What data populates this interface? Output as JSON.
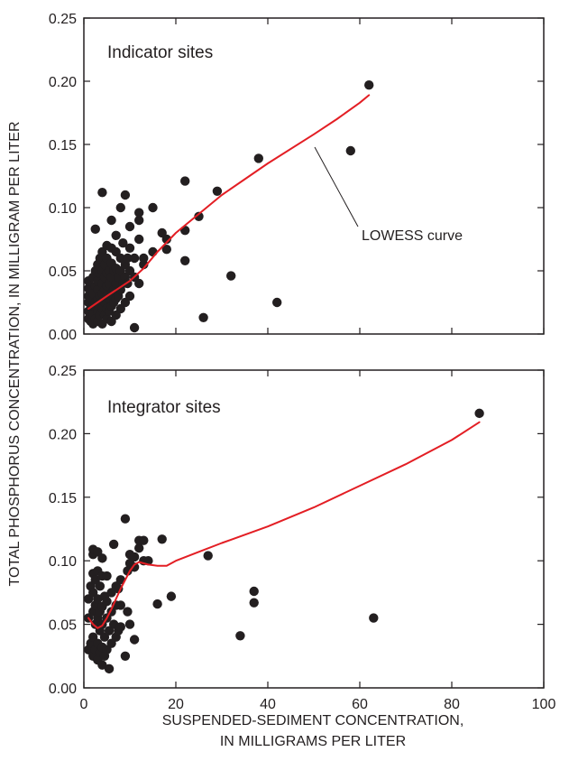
{
  "ylabel": "TOTAL PHOSPHORUS CONCENTRATION, IN MILLIGRAM PER LITER",
  "xlabel_line1": "SUSPENDED-SEDIMENT CONCENTRATION,",
  "xlabel_line2": "IN MILLIGRAMS PER LITER",
  "colors": {
    "points": "#231f20",
    "curve": "#e31e24",
    "axis": "#231f20"
  },
  "chart_data": [
    {
      "type": "scatter",
      "title": "Indicator sites",
      "annotation": "LOWESS curve",
      "xlim": [
        0,
        100
      ],
      "ylim": [
        0,
        0.25
      ],
      "xticks": [
        "0",
        "20",
        "40",
        "60",
        "80",
        "100"
      ],
      "yticks": [
        "0.00",
        "0.05",
        "0.10",
        "0.15",
        "0.20",
        "0.25"
      ],
      "grid": false,
      "points": [
        [
          1,
          0.012
        ],
        [
          1,
          0.018
        ],
        [
          1,
          0.025
        ],
        [
          1,
          0.03
        ],
        [
          1,
          0.036
        ],
        [
          1,
          0.042
        ],
        [
          1.5,
          0.01
        ],
        [
          1.5,
          0.02
        ],
        [
          1.5,
          0.028
        ],
        [
          2,
          0.008
        ],
        [
          2,
          0.015
        ],
        [
          2,
          0.022
        ],
        [
          2,
          0.032
        ],
        [
          2,
          0.045
        ],
        [
          2.5,
          0.012
        ],
        [
          2.5,
          0.025
        ],
        [
          2.5,
          0.038
        ],
        [
          2.5,
          0.05
        ],
        [
          2.5,
          0.083
        ],
        [
          3,
          0.01
        ],
        [
          3,
          0.018
        ],
        [
          3,
          0.027
        ],
        [
          3,
          0.035
        ],
        [
          3,
          0.042
        ],
        [
          3,
          0.055
        ],
        [
          3.5,
          0.015
        ],
        [
          3.5,
          0.022
        ],
        [
          3.5,
          0.03
        ],
        [
          3.5,
          0.048
        ],
        [
          3.5,
          0.06
        ],
        [
          4,
          0.008
        ],
        [
          4,
          0.02
        ],
        [
          4,
          0.032
        ],
        [
          4,
          0.04
        ],
        [
          4,
          0.05
        ],
        [
          4,
          0.065
        ],
        [
          4,
          0.112
        ],
        [
          4.5,
          0.015
        ],
        [
          4.5,
          0.025
        ],
        [
          4.5,
          0.035
        ],
        [
          4.5,
          0.045
        ],
        [
          4.5,
          0.055
        ],
        [
          5,
          0.012
        ],
        [
          5,
          0.02
        ],
        [
          5,
          0.03
        ],
        [
          5,
          0.038
        ],
        [
          5,
          0.048
        ],
        [
          5,
          0.06
        ],
        [
          5,
          0.07
        ],
        [
          5.5,
          0.018
        ],
        [
          5.5,
          0.028
        ],
        [
          5.5,
          0.04
        ],
        [
          5.5,
          0.05
        ],
        [
          6,
          0.01
        ],
        [
          6,
          0.022
        ],
        [
          6,
          0.032
        ],
        [
          6,
          0.045
        ],
        [
          6,
          0.056
        ],
        [
          6,
          0.068
        ],
        [
          6,
          0.09
        ],
        [
          6.5,
          0.025
        ],
        [
          6.5,
          0.035
        ],
        [
          6.5,
          0.05
        ],
        [
          7,
          0.015
        ],
        [
          7,
          0.028
        ],
        [
          7,
          0.04
        ],
        [
          7,
          0.052
        ],
        [
          7,
          0.065
        ],
        [
          7,
          0.078
        ],
        [
          7.5,
          0.03
        ],
        [
          7.5,
          0.045
        ],
        [
          8,
          0.02
        ],
        [
          8,
          0.035
        ],
        [
          8,
          0.05
        ],
        [
          8,
          0.06
        ],
        [
          8,
          0.1
        ],
        [
          8.5,
          0.04
        ],
        [
          8.5,
          0.072
        ],
        [
          9,
          0.025
        ],
        [
          9,
          0.045
        ],
        [
          9,
          0.055
        ],
        [
          9,
          0.11
        ],
        [
          9.5,
          0.04
        ],
        [
          9.5,
          0.06
        ],
        [
          10,
          0.03
        ],
        [
          10,
          0.05
        ],
        [
          10,
          0.068
        ],
        [
          10,
          0.085
        ],
        [
          11,
          0.005
        ],
        [
          11,
          0.045
        ],
        [
          11,
          0.06
        ],
        [
          12,
          0.04
        ],
        [
          12,
          0.075
        ],
        [
          12,
          0.09
        ],
        [
          12,
          0.096
        ],
        [
          13,
          0.055
        ],
        [
          13,
          0.06
        ],
        [
          15,
          0.1
        ],
        [
          15,
          0.065
        ],
        [
          17,
          0.08
        ],
        [
          18,
          0.075
        ],
        [
          18,
          0.067
        ],
        [
          22,
          0.121
        ],
        [
          22,
          0.082
        ],
        [
          22,
          0.058
        ],
        [
          25,
          0.093
        ],
        [
          26,
          0.013
        ],
        [
          29,
          0.113
        ],
        [
          32,
          0.046
        ],
        [
          38,
          0.139
        ],
        [
          42,
          0.025
        ],
        [
          58,
          0.145
        ],
        [
          62,
          0.197
        ]
      ],
      "lowess": [
        [
          1,
          0.02
        ],
        [
          5,
          0.03
        ],
        [
          10,
          0.042
        ],
        [
          13,
          0.052
        ],
        [
          16,
          0.065
        ],
        [
          20,
          0.08
        ],
        [
          25,
          0.095
        ],
        [
          30,
          0.11
        ],
        [
          40,
          0.135
        ],
        [
          50,
          0.158
        ],
        [
          55,
          0.17
        ],
        [
          60,
          0.183
        ],
        [
          62,
          0.189
        ]
      ]
    },
    {
      "type": "scatter",
      "title": "Integrator sites",
      "xlim": [
        0,
        100
      ],
      "ylim": [
        0,
        0.25
      ],
      "xticks": [
        "0",
        "20",
        "40",
        "60",
        "80",
        "100"
      ],
      "yticks": [
        "0.00",
        "0.05",
        "0.10",
        "0.15",
        "0.20",
        "0.25"
      ],
      "grid": false,
      "points": [
        [
          1,
          0.03
        ],
        [
          1,
          0.055
        ],
        [
          1,
          0.07
        ],
        [
          1.5,
          0.035
        ],
        [
          1.5,
          0.08
        ],
        [
          2,
          0.025
        ],
        [
          2,
          0.04
        ],
        [
          2,
          0.06
        ],
        [
          2,
          0.075
        ],
        [
          2,
          0.09
        ],
        [
          2,
          0.105
        ],
        [
          2,
          0.109
        ],
        [
          2.5,
          0.03
        ],
        [
          2.5,
          0.05
        ],
        [
          2.5,
          0.065
        ],
        [
          2.5,
          0.085
        ],
        [
          3,
          0.022
        ],
        [
          3,
          0.035
        ],
        [
          3,
          0.055
        ],
        [
          3,
          0.07
        ],
        [
          3,
          0.092
        ],
        [
          3,
          0.107
        ],
        [
          3.5,
          0.028
        ],
        [
          3.5,
          0.045
        ],
        [
          3.5,
          0.06
        ],
        [
          3.5,
          0.08
        ],
        [
          4,
          0.018
        ],
        [
          4,
          0.032
        ],
        [
          4,
          0.05
        ],
        [
          4,
          0.064
        ],
        [
          4,
          0.088
        ],
        [
          4,
          0.102
        ],
        [
          4.5,
          0.025
        ],
        [
          4.5,
          0.04
        ],
        [
          4.5,
          0.072
        ],
        [
          5,
          0.03
        ],
        [
          5,
          0.055
        ],
        [
          5,
          0.068
        ],
        [
          5,
          0.088
        ],
        [
          5.5,
          0.015
        ],
        [
          5.5,
          0.045
        ],
        [
          6,
          0.035
        ],
        [
          6,
          0.06
        ],
        [
          6,
          0.075
        ],
        [
          6.5,
          0.05
        ],
        [
          6.5,
          0.113
        ],
        [
          7,
          0.04
        ],
        [
          7,
          0.065
        ],
        [
          7,
          0.08
        ],
        [
          7.5,
          0.045
        ],
        [
          7.5,
          0.078
        ],
        [
          8,
          0.048
        ],
        [
          8,
          0.085
        ],
        [
          8,
          0.065
        ],
        [
          9,
          0.025
        ],
        [
          9,
          0.133
        ],
        [
          9.5,
          0.06
        ],
        [
          9.5,
          0.092
        ],
        [
          10,
          0.05
        ],
        [
          10,
          0.098
        ],
        [
          10,
          0.105
        ],
        [
          11,
          0.038
        ],
        [
          11,
          0.095
        ],
        [
          11,
          0.103
        ],
        [
          12,
          0.11
        ],
        [
          12,
          0.116
        ],
        [
          13,
          0.116
        ],
        [
          13,
          0.1
        ],
        [
          14,
          0.1
        ],
        [
          16,
          0.066
        ],
        [
          17,
          0.117
        ],
        [
          19,
          0.072
        ],
        [
          27,
          0.104
        ],
        [
          34,
          0.041
        ],
        [
          37,
          0.067
        ],
        [
          37,
          0.076
        ],
        [
          63,
          0.055
        ],
        [
          86,
          0.216
        ]
      ],
      "lowess": [
        [
          1,
          0.055
        ],
        [
          2,
          0.05
        ],
        [
          3,
          0.047
        ],
        [
          4,
          0.049
        ],
        [
          5,
          0.055
        ],
        [
          6,
          0.062
        ],
        [
          7,
          0.07
        ],
        [
          8,
          0.078
        ],
        [
          9,
          0.085
        ],
        [
          10,
          0.092
        ],
        [
          11,
          0.097
        ],
        [
          12,
          0.099
        ],
        [
          13,
          0.098
        ],
        [
          14,
          0.097
        ],
        [
          16,
          0.096
        ],
        [
          18,
          0.096
        ],
        [
          20,
          0.1
        ],
        [
          25,
          0.107
        ],
        [
          30,
          0.114
        ],
        [
          40,
          0.127
        ],
        [
          50,
          0.142
        ],
        [
          60,
          0.159
        ],
        [
          70,
          0.176
        ],
        [
          80,
          0.195
        ],
        [
          86,
          0.209
        ]
      ]
    }
  ]
}
